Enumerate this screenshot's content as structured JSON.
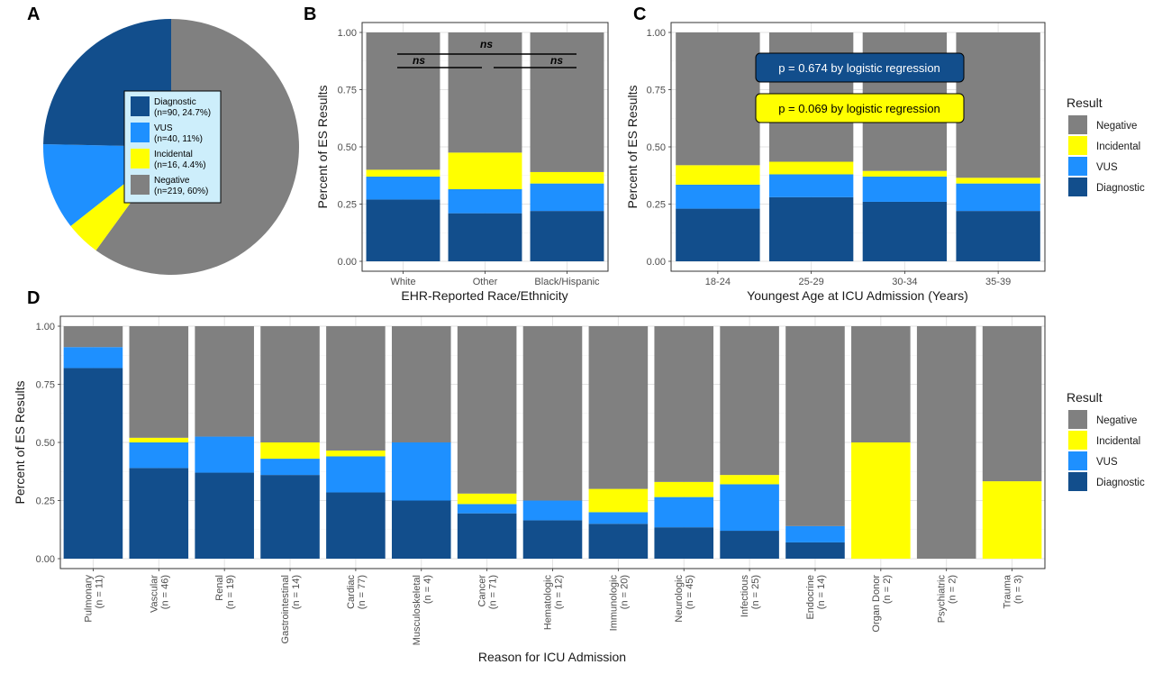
{
  "panels": {
    "a": "A",
    "b": "B",
    "c": "C",
    "d": "D"
  },
  "colors": {
    "Negative": "#808080",
    "Incidental": "#ffff00",
    "VUS": "#1e90ff",
    "Diagnostic": "#124e8c"
  },
  "chart_data": [
    {
      "id": "A",
      "type": "pie",
      "slices": [
        {
          "name": "Diagnostic",
          "count": 90,
          "percent": 24.7,
          "label_line1": "Diagnostic",
          "label_line2": "(n=90, 24.7%)"
        },
        {
          "name": "VUS",
          "count": 40,
          "percent": 11,
          "label_line1": "VUS",
          "label_line2": "(n=40, 11%)"
        },
        {
          "name": "Incidental",
          "count": 16,
          "percent": 4.4,
          "label_line1": "Incidental",
          "label_line2": "(n=16, 4.4%)"
        },
        {
          "name": "Negative",
          "count": 219,
          "percent": 60,
          "label_line1": "Negative",
          "label_line2": "(n=219, 60%)"
        }
      ]
    },
    {
      "id": "B",
      "type": "bar",
      "stacked": true,
      "xlabel": "EHR-Reported Race/Ethnicity",
      "ylabel": "Percent of ES Results",
      "ylim": [
        0,
        1
      ],
      "yticks": [
        "0.00",
        "0.25",
        "0.50",
        "0.75",
        "1.00"
      ],
      "grid": true,
      "categories": [
        "White",
        "Other",
        "Black/Hispanic"
      ],
      "series": [
        {
          "name": "Diagnostic",
          "values": [
            0.27,
            0.21,
            0.22
          ]
        },
        {
          "name": "VUS",
          "values": [
            0.1,
            0.105,
            0.12
          ]
        },
        {
          "name": "Incidental",
          "values": [
            0.03,
            0.16,
            0.05
          ]
        },
        {
          "name": "Negative",
          "values": [
            0.6,
            0.525,
            0.61
          ]
        }
      ],
      "annotations": [
        {
          "label": "ns",
          "from": 0,
          "to": 2
        },
        {
          "label": "ns",
          "from": 0,
          "to": 1
        },
        {
          "label": "ns",
          "from": 1,
          "to": 2
        }
      ]
    },
    {
      "id": "C",
      "type": "bar",
      "stacked": true,
      "xlabel": "Youngest Age at ICU Admission (Years)",
      "ylabel": "Percent of ES Results",
      "ylim": [
        0,
        1
      ],
      "yticks": [
        "0.00",
        "0.25",
        "0.50",
        "0.75",
        "1.00"
      ],
      "grid": true,
      "categories": [
        "18-24",
        "25-29",
        "30-34",
        "35-39"
      ],
      "series": [
        {
          "name": "Diagnostic",
          "values": [
            0.23,
            0.28,
            0.26,
            0.22
          ]
        },
        {
          "name": "VUS",
          "values": [
            0.105,
            0.1,
            0.11,
            0.12
          ]
        },
        {
          "name": "Incidental",
          "values": [
            0.085,
            0.055,
            0.025,
            0.025
          ]
        },
        {
          "name": "Negative",
          "values": [
            0.58,
            0.565,
            0.605,
            0.635
          ]
        }
      ],
      "annotations": [
        {
          "text": "p = 0.674 by logistic regression",
          "color": "Diagnostic"
        },
        {
          "text": "p = 0.069 by logistic regression",
          "color": "Incidental"
        }
      ],
      "legend": {
        "title": "Result",
        "placement": "right",
        "items": [
          "Negative",
          "Incidental",
          "VUS",
          "Diagnostic"
        ]
      }
    },
    {
      "id": "D",
      "type": "bar",
      "stacked": true,
      "xlabel": "Reason for ICU Admission",
      "ylabel": "Percent of ES Results",
      "ylim": [
        0,
        1
      ],
      "yticks": [
        "0.00",
        "0.25",
        "0.50",
        "0.75",
        "1.00"
      ],
      "grid": true,
      "categories": [
        {
          "name": "Pulmonary",
          "n": "(n = 11)"
        },
        {
          "name": "Vascular",
          "n": "(n = 46)"
        },
        {
          "name": "Renal",
          "n": "(n = 19)"
        },
        {
          "name": "Gastrointestinal",
          "n": "(n = 14)"
        },
        {
          "name": "Cardiac",
          "n": "(n = 77)"
        },
        {
          "name": "Musculoskeletal",
          "n": "(n = 4)"
        },
        {
          "name": "Cancer",
          "n": "(n = 71)"
        },
        {
          "name": "Hematologic",
          "n": "(n = 12)"
        },
        {
          "name": "Immunologic",
          "n": "(n = 20)"
        },
        {
          "name": "Neurologic",
          "n": "(n = 45)"
        },
        {
          "name": "Infectious",
          "n": "(n = 25)"
        },
        {
          "name": "Endocrine",
          "n": "(n = 14)"
        },
        {
          "name": "Organ Donor",
          "n": "(n = 2)"
        },
        {
          "name": "Psychiatric",
          "n": "(n = 2)"
        },
        {
          "name": "Trauma",
          "n": "(n = 3)"
        }
      ],
      "series": [
        {
          "name": "Diagnostic",
          "values": [
            0.82,
            0.39,
            0.37,
            0.36,
            0.285,
            0.25,
            0.195,
            0.165,
            0.15,
            0.135,
            0.12,
            0.07,
            0,
            0,
            0
          ]
        },
        {
          "name": "VUS",
          "values": [
            0.09,
            0.11,
            0.155,
            0.07,
            0.155,
            0.25,
            0.04,
            0.085,
            0.05,
            0.13,
            0.2,
            0.07,
            0,
            0,
            0
          ]
        },
        {
          "name": "Incidental",
          "values": [
            0,
            0.02,
            0,
            0.07,
            0.025,
            0,
            0.045,
            0,
            0.1,
            0.065,
            0.04,
            0,
            0.5,
            0,
            0.333
          ]
        },
        {
          "name": "Negative",
          "values": [
            0.09,
            0.48,
            0.475,
            0.5,
            0.535,
            0.5,
            0.72,
            0.75,
            0.7,
            0.67,
            0.64,
            0.86,
            0.5,
            1,
            0.667
          ]
        }
      ],
      "legend": {
        "title": "Result",
        "placement": "right",
        "items": [
          "Negative",
          "Incidental",
          "VUS",
          "Diagnostic"
        ]
      }
    }
  ]
}
